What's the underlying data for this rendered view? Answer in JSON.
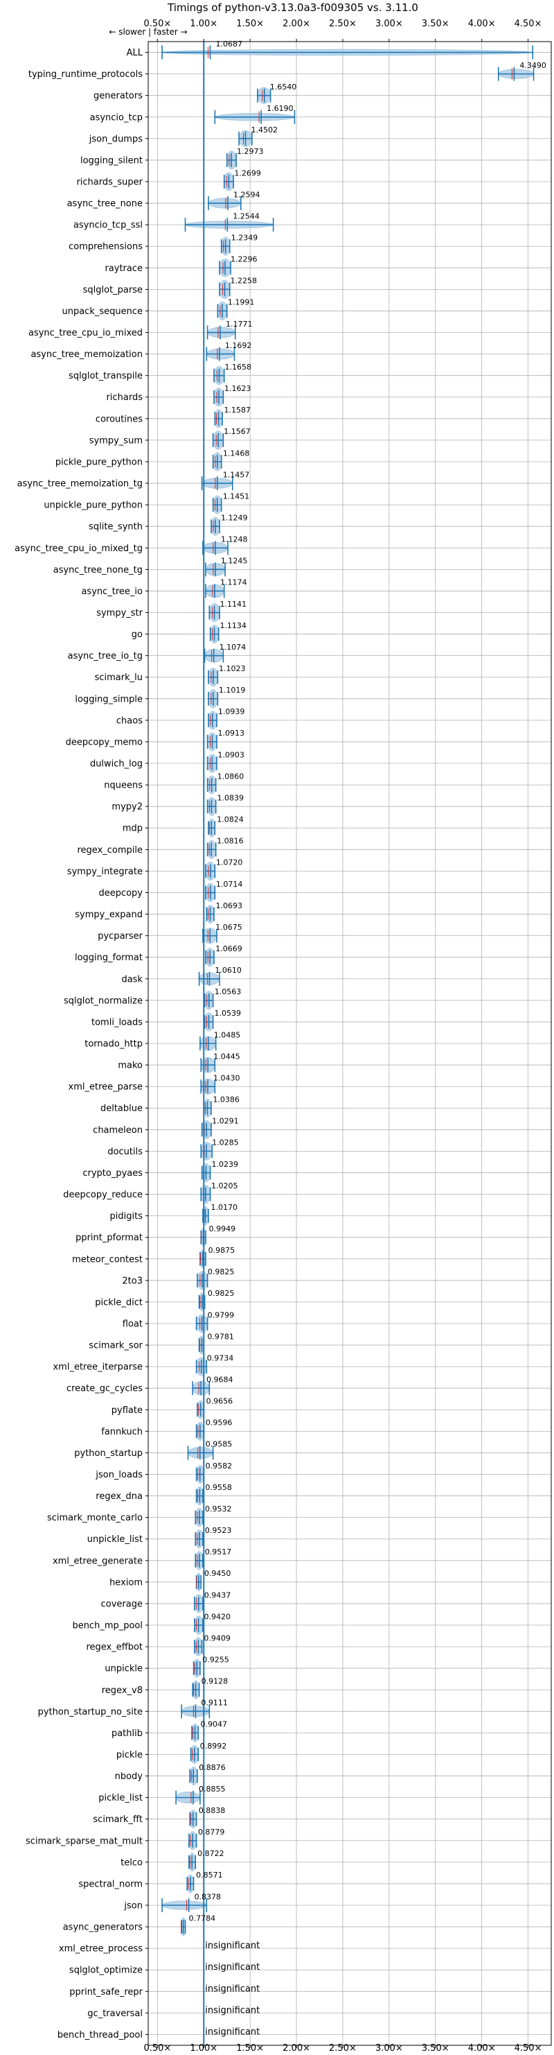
{
  "chart_data": {
    "type": "violin",
    "title": "Timings of python-v3.13.0a3-f009305 vs. 3.11.0",
    "speed_hint": "← slower | faster →",
    "x_scale": "linear",
    "xlim": [
      0.4,
      4.75
    ],
    "x_ticks": [
      0.5,
      1.0,
      1.5,
      2.0,
      2.5,
      3.0,
      3.5,
      4.0,
      4.5
    ],
    "x_tick_labels": [
      "0.50×",
      "1.00×",
      "1.50×",
      "2.00×",
      "2.50×",
      "3.00×",
      "3.50×",
      "4.00×",
      "4.50×"
    ],
    "reference_line": 1.0,
    "grid": true,
    "insignificant_label": "insignificant",
    "benchmarks": [
      {
        "name": "ALL",
        "value": 1.0687,
        "label": "1.0687",
        "min": 0.55,
        "max": 4.55
      },
      {
        "name": "typing_runtime_protocols",
        "value": 4.349,
        "label": "4.3490",
        "min": 4.18,
        "max": 4.56
      },
      {
        "name": "generators",
        "value": 1.654,
        "label": "1.6540",
        "min": 1.58,
        "max": 1.72
      },
      {
        "name": "asyncio_tcp",
        "value": 1.619,
        "label": "1.6190",
        "min": 1.12,
        "max": 1.98
      },
      {
        "name": "json_dumps",
        "value": 1.4502,
        "label": "1.4502",
        "min": 1.38,
        "max": 1.52
      },
      {
        "name": "logging_silent",
        "value": 1.2973,
        "label": "1.2973",
        "min": 1.25,
        "max": 1.35
      },
      {
        "name": "richards_super",
        "value": 1.2699,
        "label": "1.2699",
        "min": 1.22,
        "max": 1.32
      },
      {
        "name": "async_tree_none",
        "value": 1.2594,
        "label": "1.2594",
        "min": 1.05,
        "max": 1.4
      },
      {
        "name": "asyncio_tcp_ssl",
        "value": 1.2544,
        "label": "1.2544",
        "min": 0.8,
        "max": 1.75
      },
      {
        "name": "comprehensions",
        "value": 1.2349,
        "label": "1.2349",
        "min": 1.19,
        "max": 1.28
      },
      {
        "name": "raytrace",
        "value": 1.2296,
        "label": "1.2296",
        "min": 1.17,
        "max": 1.29
      },
      {
        "name": "sqlglot_parse",
        "value": 1.2258,
        "label": "1.2258",
        "min": 1.17,
        "max": 1.28
      },
      {
        "name": "unpack_sequence",
        "value": 1.1991,
        "label": "1.1991",
        "min": 1.15,
        "max": 1.25
      },
      {
        "name": "async_tree_cpu_io_mixed",
        "value": 1.1771,
        "label": "1.1771",
        "min": 1.04,
        "max": 1.34
      },
      {
        "name": "async_tree_memoization",
        "value": 1.1692,
        "label": "1.1692",
        "min": 1.03,
        "max": 1.33
      },
      {
        "name": "sqlglot_transpile",
        "value": 1.1658,
        "label": "1.1658",
        "min": 1.11,
        "max": 1.22
      },
      {
        "name": "richards",
        "value": 1.1623,
        "label": "1.1623",
        "min": 1.11,
        "max": 1.21
      },
      {
        "name": "coroutines",
        "value": 1.1587,
        "label": "1.1587",
        "min": 1.12,
        "max": 1.2
      },
      {
        "name": "sympy_sum",
        "value": 1.1567,
        "label": "1.1567",
        "min": 1.1,
        "max": 1.21
      },
      {
        "name": "pickle_pure_python",
        "value": 1.1468,
        "label": "1.1468",
        "min": 1.1,
        "max": 1.19
      },
      {
        "name": "async_tree_memoization_tg",
        "value": 1.1457,
        "label": "1.1457",
        "min": 0.98,
        "max": 1.31
      },
      {
        "name": "unpickle_pure_python",
        "value": 1.1451,
        "label": "1.1451",
        "min": 1.1,
        "max": 1.19
      },
      {
        "name": "sqlite_synth",
        "value": 1.1249,
        "label": "1.1249",
        "min": 1.08,
        "max": 1.17
      },
      {
        "name": "async_tree_cpu_io_mixed_tg",
        "value": 1.1248,
        "label": "1.1248",
        "min": 0.99,
        "max": 1.26
      },
      {
        "name": "async_tree_none_tg",
        "value": 1.1245,
        "label": "1.1245",
        "min": 1.02,
        "max": 1.23
      },
      {
        "name": "async_tree_io",
        "value": 1.1174,
        "label": "1.1174",
        "min": 1.02,
        "max": 1.22
      },
      {
        "name": "sympy_str",
        "value": 1.1141,
        "label": "1.1141",
        "min": 1.06,
        "max": 1.17
      },
      {
        "name": "go",
        "value": 1.1134,
        "label": "1.1134",
        "min": 1.07,
        "max": 1.16
      },
      {
        "name": "async_tree_io_tg",
        "value": 1.1074,
        "label": "1.1074",
        "min": 1.01,
        "max": 1.21
      },
      {
        "name": "scimark_lu",
        "value": 1.1023,
        "label": "1.1023",
        "min": 1.05,
        "max": 1.15
      },
      {
        "name": "logging_simple",
        "value": 1.1019,
        "label": "1.1019",
        "min": 1.05,
        "max": 1.15
      },
      {
        "name": "chaos",
        "value": 1.0939,
        "label": "1.0939",
        "min": 1.05,
        "max": 1.14
      },
      {
        "name": "deepcopy_memo",
        "value": 1.0913,
        "label": "1.0913",
        "min": 1.04,
        "max": 1.14
      },
      {
        "name": "dulwich_log",
        "value": 1.0903,
        "label": "1.0903",
        "min": 1.04,
        "max": 1.14
      },
      {
        "name": "nqueens",
        "value": 1.086,
        "label": "1.0860",
        "min": 1.04,
        "max": 1.13
      },
      {
        "name": "mypy2",
        "value": 1.0839,
        "label": "1.0839",
        "min": 1.04,
        "max": 1.13
      },
      {
        "name": "mdp",
        "value": 1.0824,
        "label": "1.0824",
        "min": 1.05,
        "max": 1.12
      },
      {
        "name": "regex_compile",
        "value": 1.0816,
        "label": "1.0816",
        "min": 1.04,
        "max": 1.13
      },
      {
        "name": "sympy_integrate",
        "value": 1.072,
        "label": "1.0720",
        "min": 1.02,
        "max": 1.12
      },
      {
        "name": "deepcopy",
        "value": 1.0714,
        "label": "1.0714",
        "min": 1.02,
        "max": 1.12
      },
      {
        "name": "sympy_expand",
        "value": 1.0693,
        "label": "1.0693",
        "min": 1.03,
        "max": 1.11
      },
      {
        "name": "pycparser",
        "value": 1.0675,
        "label": "1.0675",
        "min": 0.99,
        "max": 1.14
      },
      {
        "name": "logging_format",
        "value": 1.0669,
        "label": "1.0669",
        "min": 1.02,
        "max": 1.11
      },
      {
        "name": "dask",
        "value": 1.061,
        "label": "1.0610",
        "min": 0.95,
        "max": 1.17
      },
      {
        "name": "sqlglot_normalize",
        "value": 1.0563,
        "label": "1.0563",
        "min": 1.01,
        "max": 1.1
      },
      {
        "name": "tomli_loads",
        "value": 1.0539,
        "label": "1.0539",
        "min": 1.01,
        "max": 1.1
      },
      {
        "name": "tornado_http",
        "value": 1.0485,
        "label": "1.0485",
        "min": 0.96,
        "max": 1.13
      },
      {
        "name": "mako",
        "value": 1.0445,
        "label": "1.0445",
        "min": 0.97,
        "max": 1.12
      },
      {
        "name": "xml_etree_parse",
        "value": 1.043,
        "label": "1.0430",
        "min": 0.97,
        "max": 1.12
      },
      {
        "name": "deltablue",
        "value": 1.0386,
        "label": "1.0386",
        "min": 1.0,
        "max": 1.08
      },
      {
        "name": "chameleon",
        "value": 1.0291,
        "label": "1.0291",
        "min": 0.98,
        "max": 1.08
      },
      {
        "name": "docutils",
        "value": 1.0285,
        "label": "1.0285",
        "min": 0.97,
        "max": 1.09
      },
      {
        "name": "crypto_pyaes",
        "value": 1.0239,
        "label": "1.0239",
        "min": 0.98,
        "max": 1.07
      },
      {
        "name": "deepcopy_reduce",
        "value": 1.0205,
        "label": "1.0205",
        "min": 0.97,
        "max": 1.07
      },
      {
        "name": "pidigits",
        "value": 1.017,
        "label": "1.0170",
        "min": 0.99,
        "max": 1.05
      },
      {
        "name": "pprint_pformat",
        "value": 0.9949,
        "label": "0.9949",
        "min": 0.97,
        "max": 1.02
      },
      {
        "name": "meteor_contest",
        "value": 0.9875,
        "label": "0.9875",
        "min": 0.96,
        "max": 1.02
      },
      {
        "name": "2to3",
        "value": 0.9825,
        "label": "0.9825",
        "min": 0.93,
        "max": 1.04
      },
      {
        "name": "pickle_dict",
        "value": 0.9825,
        "label": "0.9825",
        "min": 0.95,
        "max": 1.01
      },
      {
        "name": "float",
        "value": 0.9799,
        "label": "0.9799",
        "min": 0.92,
        "max": 1.04
      },
      {
        "name": "scimark_sor",
        "value": 0.9781,
        "label": "0.9781",
        "min": 0.95,
        "max": 1.0
      },
      {
        "name": "xml_etree_iterparse",
        "value": 0.9734,
        "label": "0.9734",
        "min": 0.92,
        "max": 1.03
      },
      {
        "name": "create_gc_cycles",
        "value": 0.9684,
        "label": "0.9684",
        "min": 0.88,
        "max": 1.06
      },
      {
        "name": "pyflate",
        "value": 0.9656,
        "label": "0.9656",
        "min": 0.93,
        "max": 1.0
      },
      {
        "name": "fannkuch",
        "value": 0.9596,
        "label": "0.9596",
        "min": 0.92,
        "max": 1.0
      },
      {
        "name": "python_startup",
        "value": 0.9585,
        "label": "0.9585",
        "min": 0.83,
        "max": 1.1
      },
      {
        "name": "json_loads",
        "value": 0.9582,
        "label": "0.9582",
        "min": 0.92,
        "max": 1.0
      },
      {
        "name": "regex_dna",
        "value": 0.9558,
        "label": "0.9558",
        "min": 0.92,
        "max": 0.99
      },
      {
        "name": "scimark_monte_carlo",
        "value": 0.9532,
        "label": "0.9532",
        "min": 0.91,
        "max": 0.99
      },
      {
        "name": "unpickle_list",
        "value": 0.9523,
        "label": "0.9523",
        "min": 0.91,
        "max": 0.99
      },
      {
        "name": "xml_etree_generate",
        "value": 0.9517,
        "label": "0.9517",
        "min": 0.91,
        "max": 0.99
      },
      {
        "name": "hexiom",
        "value": 0.945,
        "label": "0.9450",
        "min": 0.92,
        "max": 0.97
      },
      {
        "name": "coverage",
        "value": 0.9437,
        "label": "0.9437",
        "min": 0.9,
        "max": 0.99
      },
      {
        "name": "bench_mp_pool",
        "value": 0.942,
        "label": "0.9420",
        "min": 0.9,
        "max": 0.99
      },
      {
        "name": "regex_effbot",
        "value": 0.9409,
        "label": "0.9409",
        "min": 0.9,
        "max": 0.98
      },
      {
        "name": "unpickle",
        "value": 0.9255,
        "label": "0.9255",
        "min": 0.89,
        "max": 0.96
      },
      {
        "name": "regex_v8",
        "value": 0.9128,
        "label": "0.9128",
        "min": 0.88,
        "max": 0.95
      },
      {
        "name": "python_startup_no_site",
        "value": 0.9111,
        "label": "0.9111",
        "min": 0.76,
        "max": 1.06
      },
      {
        "name": "pathlib",
        "value": 0.9047,
        "label": "0.9047",
        "min": 0.87,
        "max": 0.94
      },
      {
        "name": "pickle",
        "value": 0.8992,
        "label": "0.8992",
        "min": 0.86,
        "max": 0.94
      },
      {
        "name": "nbody",
        "value": 0.8876,
        "label": "0.8876",
        "min": 0.85,
        "max": 0.93
      },
      {
        "name": "pickle_list",
        "value": 0.8855,
        "label": "0.8855",
        "min": 0.7,
        "max": 0.96
      },
      {
        "name": "scimark_fft",
        "value": 0.8838,
        "label": "0.8838",
        "min": 0.85,
        "max": 0.92
      },
      {
        "name": "scimark_sparse_mat_mult",
        "value": 0.8779,
        "label": "0.8779",
        "min": 0.84,
        "max": 0.92
      },
      {
        "name": "telco",
        "value": 0.8722,
        "label": "0.8722",
        "min": 0.84,
        "max": 0.91
      },
      {
        "name": "spectral_norm",
        "value": 0.8571,
        "label": "0.8571",
        "min": 0.82,
        "max": 0.89
      },
      {
        "name": "json",
        "value": 0.8378,
        "label": "0.8378",
        "min": 0.55,
        "max": 1.03
      },
      {
        "name": "async_generators",
        "value": 0.7784,
        "label": "0.7784",
        "min": 0.76,
        "max": 0.8
      },
      {
        "name": "xml_etree_process",
        "value": null,
        "label": "",
        "min": null,
        "max": null
      },
      {
        "name": "sqlglot_optimize",
        "value": null,
        "label": "",
        "min": null,
        "max": null
      },
      {
        "name": "pprint_safe_repr",
        "value": null,
        "label": "",
        "min": null,
        "max": null
      },
      {
        "name": "gc_traversal",
        "value": null,
        "label": "",
        "min": null,
        "max": null
      },
      {
        "name": "bench_thread_pool",
        "value": null,
        "label": "",
        "min": null,
        "max": null
      }
    ],
    "colors": {
      "violin": "#a6c8e3",
      "whisker": "#1f77b4",
      "reference": "#1f77b4",
      "median": "#d62728",
      "grid": "#b0b0b0",
      "text": "#000000"
    }
  }
}
